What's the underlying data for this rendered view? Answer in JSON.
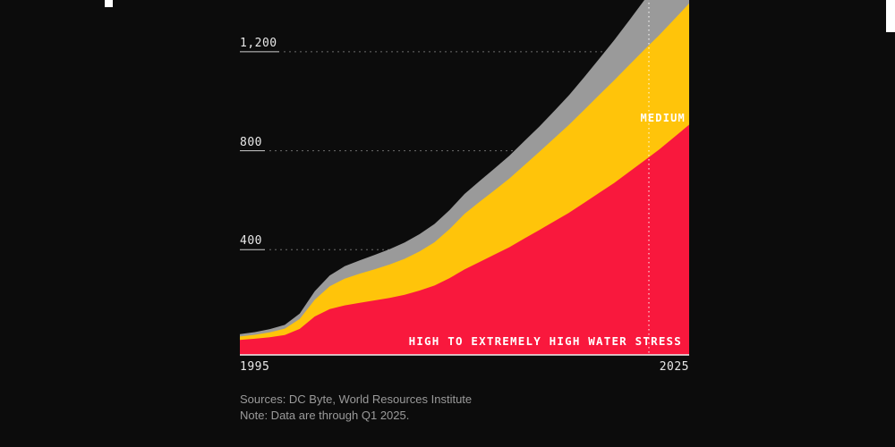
{
  "chart_data": {
    "type": "area",
    "stacked": true,
    "title": "",
    "x": [
      1995,
      1996,
      1997,
      1998,
      1999,
      2000,
      2001,
      2002,
      2003,
      2004,
      2005,
      2006,
      2007,
      2008,
      2009,
      2010,
      2011,
      2012,
      2013,
      2014,
      2015,
      2016,
      2017,
      2018,
      2019,
      2020,
      2021,
      2022,
      2023,
      2024,
      2025
    ],
    "series": [
      {
        "name": "HIGH TO EXTREMELY HIGH WATER STRESS",
        "color": "#F9183D",
        "values": [
          35,
          40,
          46,
          55,
          80,
          130,
          160,
          175,
          185,
          195,
          205,
          218,
          235,
          255,
          285,
          320,
          350,
          380,
          410,
          445,
          480,
          515,
          550,
          590,
          630,
          670,
          715,
          760,
          805,
          855,
          905
        ]
      },
      {
        "name": "MEDIUM",
        "color": "#FFC40A",
        "values": [
          14,
          16,
          20,
          26,
          40,
          68,
          92,
          108,
          118,
          126,
          135,
          145,
          158,
          175,
          198,
          225,
          243,
          260,
          278,
          297,
          316,
          336,
          356,
          376,
          396,
          415,
          432,
          448,
          462,
          476,
          490
        ]
      },
      {
        "name": "",
        "color": "#9A9A9A",
        "values": [
          10,
          11,
          13,
          15,
          22,
          34,
          44,
          50,
          54,
          58,
          62,
          66,
          70,
          74,
          77,
          80,
          84,
          88,
          92,
          97,
          102,
          110,
          120,
          132,
          146,
          162,
          180,
          200,
          214,
          228,
          240
        ]
      }
    ],
    "yticks": [
      {
        "value": 400,
        "label": "400"
      },
      {
        "value": 800,
        "label": "800"
      },
      {
        "value": 1200,
        "label": "1,200"
      }
    ],
    "xticks": [
      "1995",
      "2025"
    ],
    "ylim": [
      0,
      1400
    ],
    "x_range": [
      1995,
      2025
    ],
    "grid": "dashed-horizontal",
    "legend": "in-chart-labels",
    "marker_line": "vertical dotted rule near right edge (data cutoff)"
  },
  "footer": {
    "sources": "Sources: DC Byte, World Resources Institute",
    "note": "Note: Data are through Q1 2025."
  }
}
